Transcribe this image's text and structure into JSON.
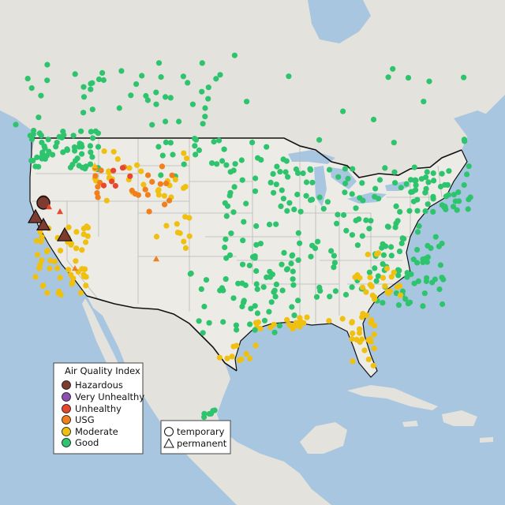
{
  "legend": {
    "title": "Air Quality Index",
    "categories": [
      {
        "key": "hazardous",
        "label": "Hazardous",
        "color": "#7e3b2f"
      },
      {
        "key": "very_unhealthy",
        "label": "Very Unhealthy",
        "color": "#8e4fb3"
      },
      {
        "key": "unhealthy",
        "label": "Unhealthy",
        "color": "#e8472e"
      },
      {
        "key": "usg",
        "label": "USG",
        "color": "#f07f1c"
      },
      {
        "key": "moderate",
        "label": "Moderate",
        "color": "#f0c010"
      },
      {
        "key": "good",
        "label": "Good",
        "color": "#2ec46e"
      }
    ]
  },
  "monitor_types": {
    "temporary_label": "temporary",
    "permanent_label": "permanent"
  },
  "colors": {
    "ocean": "#a9c6e0",
    "land_us": "#ecebe6",
    "land_other": "#e3e2dc",
    "state_border": "#b9b9b9",
    "country_border": "#111111",
    "hazardous": "#7e3b2f",
    "unhealthy": "#e8472e",
    "usg": "#f07f1c",
    "moderate": "#f0c010",
    "good": "#2ec46e"
  }
}
